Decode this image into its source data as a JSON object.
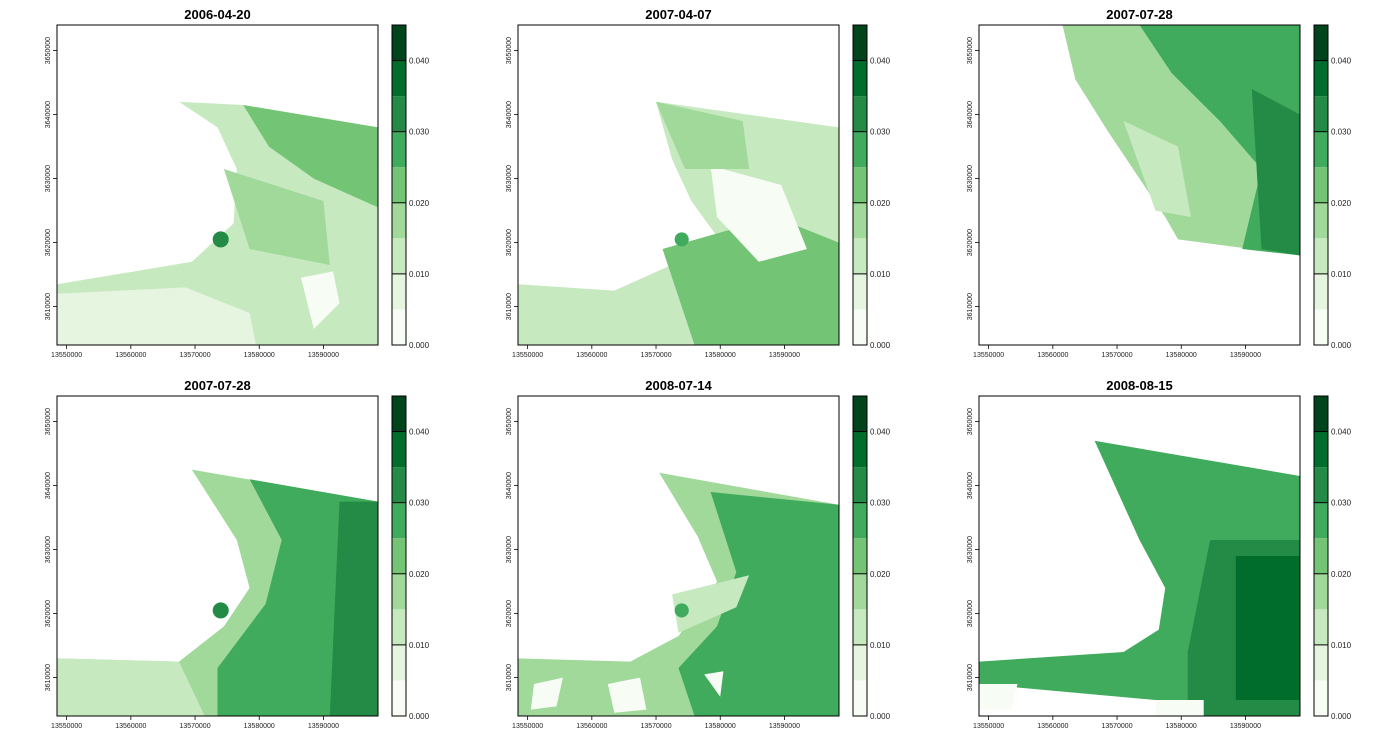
{
  "chart_data": [
    {
      "type": "heatmap",
      "title": "2006-04-20",
      "x_ticks": [
        "13550000",
        "13560000",
        "13570000",
        "13580000",
        "13590000"
      ],
      "y_ticks": [
        "3610000",
        "3620000",
        "3630000",
        "3640000",
        "3650000"
      ],
      "colorbar": {
        "min": 0.0,
        "max": 0.045,
        "step": 0.005,
        "labels": [
          "0.000",
          "0.010",
          "0.020",
          "0.030",
          "0.040"
        ]
      },
      "xlim": [
        13548500,
        13598500
      ],
      "ylim": [
        3604000,
        3654000
      ]
    },
    {
      "type": "heatmap",
      "title": "2007-04-07",
      "x_ticks": [
        "13550000",
        "13560000",
        "13570000",
        "13580000",
        "13590000"
      ],
      "y_ticks": [
        "3610000",
        "3620000",
        "3630000",
        "3640000",
        "3650000"
      ],
      "colorbar": {
        "min": 0.0,
        "max": 0.045,
        "step": 0.005,
        "labels": [
          "0.000",
          "0.010",
          "0.020",
          "0.030",
          "0.040"
        ]
      },
      "xlim": [
        13548500,
        13598500
      ],
      "ylim": [
        3604000,
        3654000
      ]
    },
    {
      "type": "heatmap",
      "title": "2007-07-28",
      "x_ticks": [
        "13550000",
        "13560000",
        "13570000",
        "13580000",
        "13590000"
      ],
      "y_ticks": [
        "3610000",
        "3620000",
        "3630000",
        "3640000",
        "3650000"
      ],
      "colorbar": {
        "min": 0.0,
        "max": 0.045,
        "step": 0.005,
        "labels": [
          "0.000",
          "0.010",
          "0.020",
          "0.030",
          "0.040"
        ]
      },
      "xlim": [
        13548500,
        13598500
      ],
      "ylim": [
        3604000,
        3654000
      ]
    },
    {
      "type": "heatmap",
      "title": "2007-07-28",
      "x_ticks": [
        "13550000",
        "13560000",
        "13570000",
        "13580000",
        "13590000"
      ],
      "y_ticks": [
        "3610000",
        "3620000",
        "3630000",
        "3640000",
        "3650000"
      ],
      "colorbar": {
        "min": 0.0,
        "max": 0.045,
        "step": 0.005,
        "labels": [
          "0.000",
          "0.010",
          "0.020",
          "0.030",
          "0.040"
        ]
      },
      "xlim": [
        13548500,
        13598500
      ],
      "ylim": [
        3604000,
        3654000
      ]
    },
    {
      "type": "heatmap",
      "title": "2008-07-14",
      "x_ticks": [
        "13550000",
        "13560000",
        "13570000",
        "13580000",
        "13590000"
      ],
      "y_ticks": [
        "3610000",
        "3620000",
        "3630000",
        "3640000",
        "3650000"
      ],
      "colorbar": {
        "min": 0.0,
        "max": 0.045,
        "step": 0.005,
        "labels": [
          "0.000",
          "0.010",
          "0.020",
          "0.030",
          "0.040"
        ]
      },
      "xlim": [
        13548500,
        13598500
      ],
      "ylim": [
        3604000,
        3654000
      ]
    },
    {
      "type": "heatmap",
      "title": "2008-08-15",
      "x_ticks": [
        "13550000",
        "13560000",
        "13570000",
        "13580000",
        "13590000"
      ],
      "y_ticks": [
        "3610000",
        "3620000",
        "3630000",
        "3640000",
        "3650000"
      ],
      "colorbar": {
        "min": 0.0,
        "max": 0.045,
        "step": 0.005,
        "labels": [
          "0.000",
          "0.010",
          "0.020",
          "0.030",
          "0.040"
        ]
      },
      "xlim": [
        13548500,
        13598500
      ],
      "ylim": [
        3604000,
        3654000
      ]
    }
  ],
  "colors": {
    "palette": [
      "#f7fcf5",
      "#e5f5e0",
      "#c7e9c0",
      "#a1d99b",
      "#74c476",
      "#41ab5d",
      "#238b45",
      "#006d2c",
      "#00441b"
    ],
    "background": "#ffffff",
    "frame": "#000000"
  }
}
